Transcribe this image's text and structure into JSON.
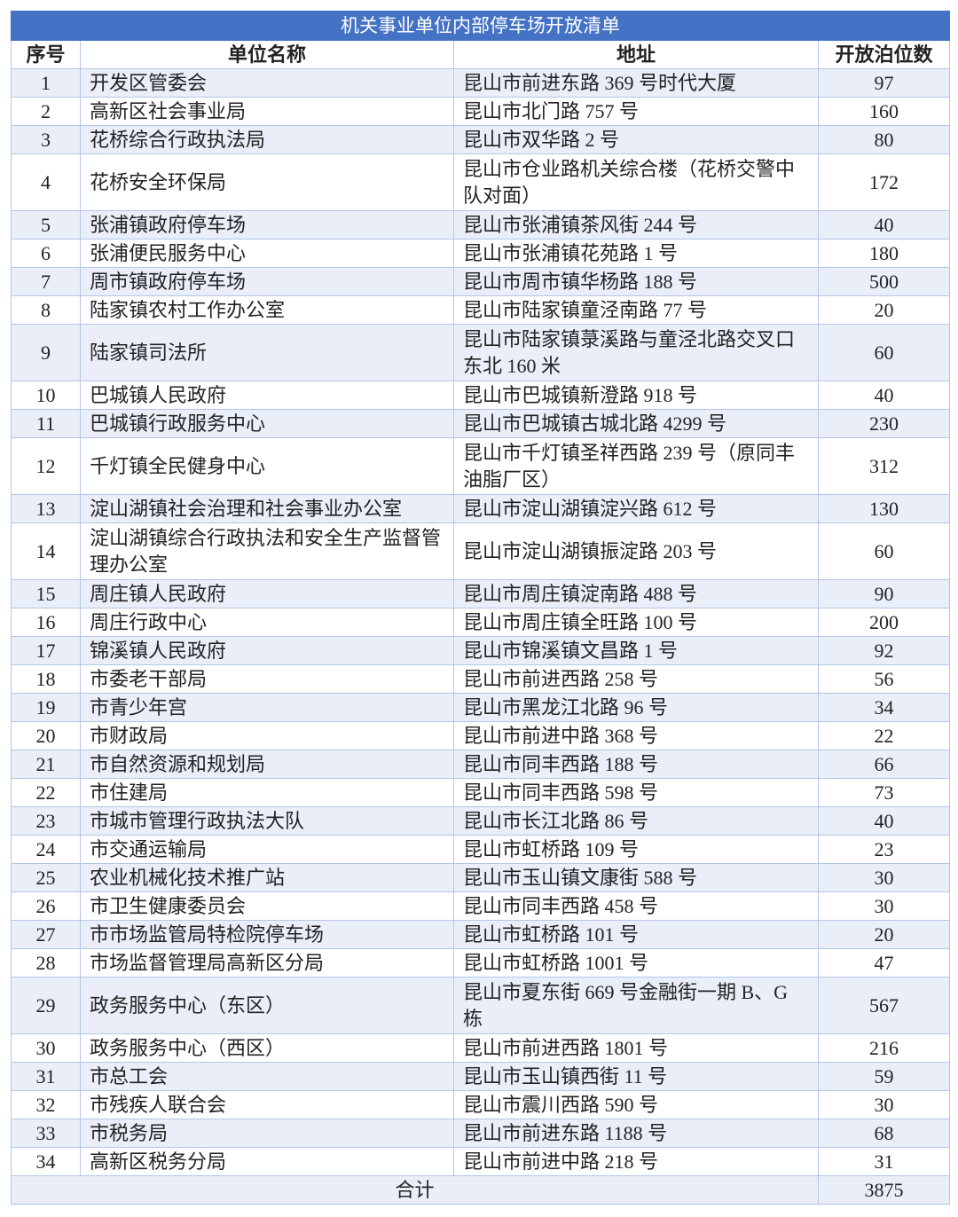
{
  "title": "机关事业单位内部停车场开放清单",
  "headers": [
    "序号",
    "单位名称",
    "地址",
    "开放泊位数"
  ],
  "colors": {
    "title_bg": "#4472c4",
    "stripe": "#e9eef8",
    "border": "#b4c6e7"
  },
  "rows": [
    {
      "no": "1",
      "name": "开发区管委会",
      "addr": "昆山市前进东路 369 号时代大厦",
      "spaces": "97"
    },
    {
      "no": "2",
      "name": "高新区社会事业局",
      "addr": "昆山市北门路 757 号",
      "spaces": "160"
    },
    {
      "no": "3",
      "name": "花桥综合行政执法局",
      "addr": "昆山市双华路 2 号",
      "spaces": "80"
    },
    {
      "no": "4",
      "name": "花桥安全环保局",
      "addr": "昆山市仓业路机关综合楼（花桥交警中队对面）",
      "spaces": "172"
    },
    {
      "no": "5",
      "name": "张浦镇政府停车场",
      "addr": "昆山市张浦镇茶风街 244 号",
      "spaces": "40"
    },
    {
      "no": "6",
      "name": "张浦便民服务中心",
      "addr": "昆山市张浦镇花苑路 1 号",
      "spaces": "180"
    },
    {
      "no": "7",
      "name": "周市镇政府停车场",
      "addr": "昆山市周市镇华杨路 188 号",
      "spaces": "500"
    },
    {
      "no": "8",
      "name": "陆家镇农村工作办公室",
      "addr": "昆山市陆家镇童泾南路 77 号",
      "spaces": "20"
    },
    {
      "no": "9",
      "name": "陆家镇司法所",
      "addr": "昆山市陆家镇菉溪路与童泾北路交叉口东北 160 米",
      "spaces": "60"
    },
    {
      "no": "10",
      "name": "巴城镇人民政府",
      "addr": "昆山市巴城镇新澄路 918 号",
      "spaces": "40"
    },
    {
      "no": "11",
      "name": "巴城镇行政服务中心",
      "addr": "昆山市巴城镇古城北路 4299 号",
      "spaces": "230"
    },
    {
      "no": "12",
      "name": "千灯镇全民健身中心",
      "addr": "昆山市千灯镇圣祥西路 239 号（原同丰油脂厂区）",
      "spaces": "312"
    },
    {
      "no": "13",
      "name": "淀山湖镇社会治理和社会事业办公室",
      "addr": "昆山市淀山湖镇淀兴路 612 号",
      "spaces": "130"
    },
    {
      "no": "14",
      "name": "淀山湖镇综合行政执法和安全生产监督管理办公室",
      "addr": "昆山市淀山湖镇振淀路 203 号",
      "spaces": "60"
    },
    {
      "no": "15",
      "name": "周庄镇人民政府",
      "addr": "昆山市周庄镇淀南路 488 号",
      "spaces": "90"
    },
    {
      "no": "16",
      "name": "周庄行政中心",
      "addr": "昆山市周庄镇全旺路 100 号",
      "spaces": "200"
    },
    {
      "no": "17",
      "name": "锦溪镇人民政府",
      "addr": "昆山市锦溪镇文昌路 1 号",
      "spaces": "92"
    },
    {
      "no": "18",
      "name": "市委老干部局",
      "addr": "昆山市前进西路 258 号",
      "spaces": "56"
    },
    {
      "no": "19",
      "name": "市青少年宫",
      "addr": "昆山市黑龙江北路 96 号",
      "spaces": "34"
    },
    {
      "no": "20",
      "name": "市财政局",
      "addr": "昆山市前进中路 368 号",
      "spaces": "22"
    },
    {
      "no": "21",
      "name": "市自然资源和规划局",
      "addr": "昆山市同丰西路 188 号",
      "spaces": "66"
    },
    {
      "no": "22",
      "name": "市住建局",
      "addr": "昆山市同丰西路 598 号",
      "spaces": "73"
    },
    {
      "no": "23",
      "name": "市城市管理行政执法大队",
      "addr": "昆山市长江北路 86 号",
      "spaces": "40"
    },
    {
      "no": "24",
      "name": "市交通运输局",
      "addr": "昆山市虹桥路 109 号",
      "spaces": "23"
    },
    {
      "no": "25",
      "name": "农业机械化技术推广站",
      "addr": "昆山市玉山镇文康街 588 号",
      "spaces": "30"
    },
    {
      "no": "26",
      "name": "市卫生健康委员会",
      "addr": "昆山市同丰西路 458 号",
      "spaces": "30"
    },
    {
      "no": "27",
      "name": "市市场监管局特检院停车场",
      "addr": "昆山市虹桥路 101 号",
      "spaces": "20"
    },
    {
      "no": "28",
      "name": "市场监督管理局高新区分局",
      "addr": "昆山市虹桥路 1001 号",
      "spaces": "47"
    },
    {
      "no": "29",
      "name": "政务服务中心（东区）",
      "addr": "昆山市夏东街 669 号金融街一期 B、G 栋",
      "spaces": "567"
    },
    {
      "no": "30",
      "name": "政务服务中心（西区）",
      "addr": "昆山市前进西路 1801 号",
      "spaces": "216"
    },
    {
      "no": "31",
      "name": "市总工会",
      "addr": "昆山市玉山镇西街 11 号",
      "spaces": "59"
    },
    {
      "no": "32",
      "name": "市残疾人联合会",
      "addr": "昆山市震川西路 590 号",
      "spaces": "30"
    },
    {
      "no": "33",
      "name": "市税务局",
      "addr": "昆山市前进东路 1188 号",
      "spaces": "68"
    },
    {
      "no": "34",
      "name": "高新区税务分局",
      "addr": "昆山市前进中路 218 号",
      "spaces": "31"
    }
  ],
  "total": {
    "label": "合计",
    "spaces": "3875"
  }
}
